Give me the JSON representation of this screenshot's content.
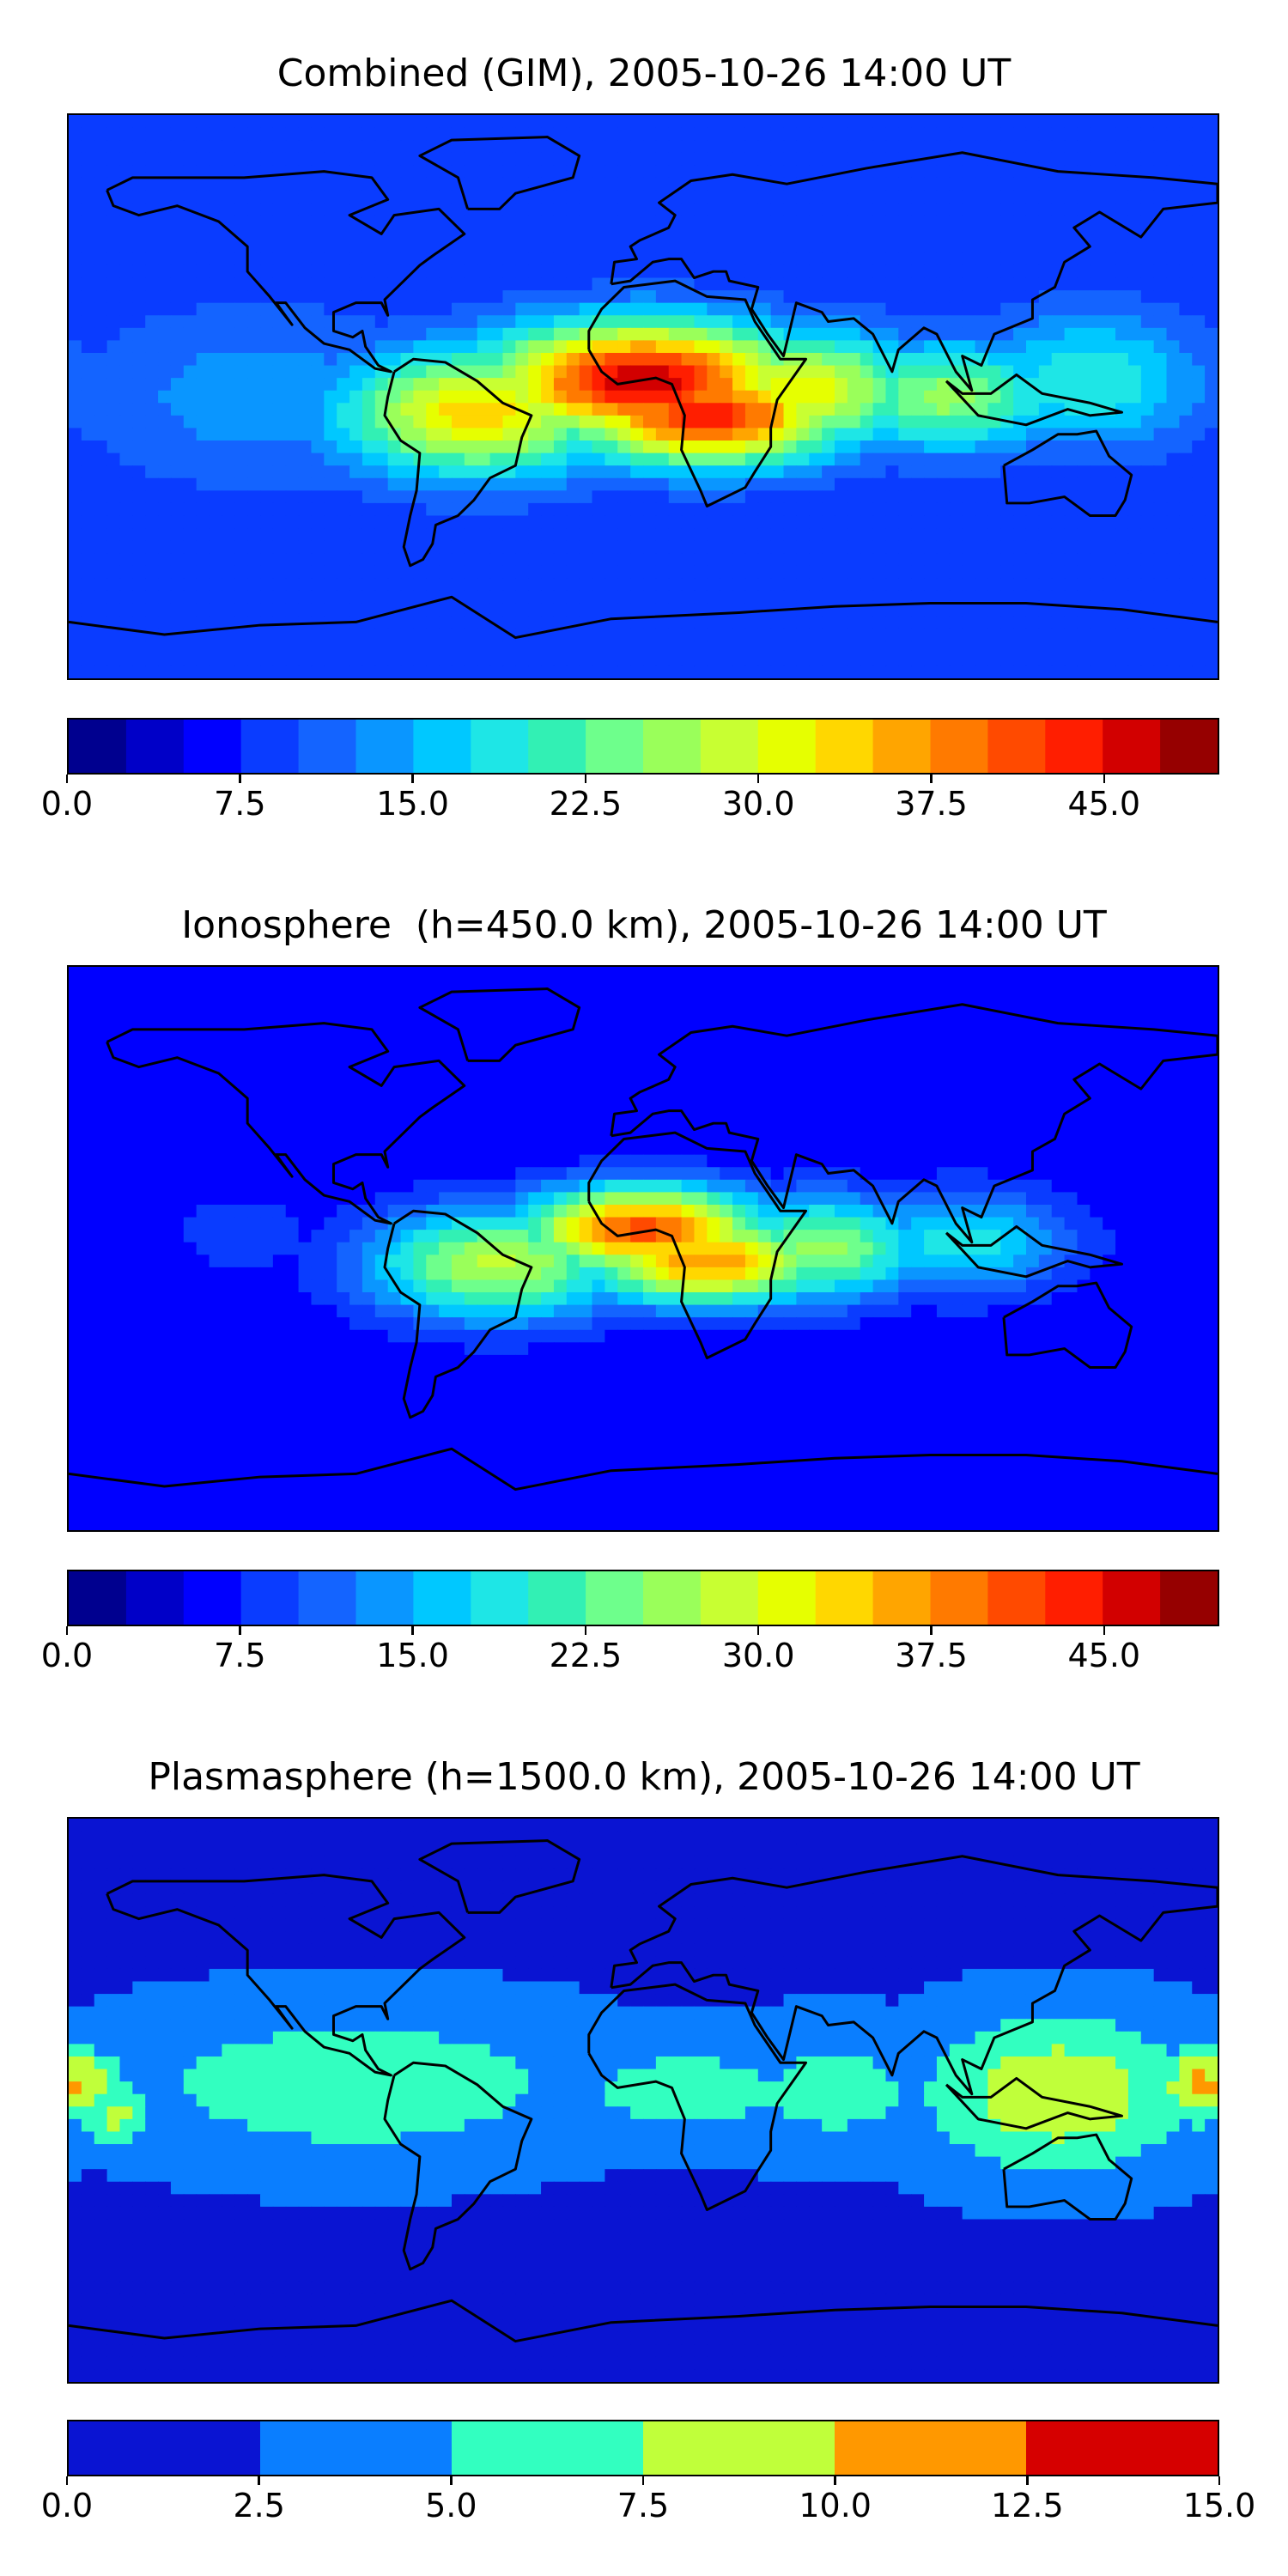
{
  "chart_data": [
    {
      "type": "heatmap",
      "title": "Combined (GIM), 2005-10-26 14:00 UT",
      "colorbar": {
        "levels": [
          0.0,
          2.5,
          5.0,
          7.5,
          10.0,
          12.5,
          15.0,
          17.5,
          20.0,
          22.5,
          25.0,
          27.5,
          30.0,
          32.5,
          35.0,
          37.5,
          40.0,
          42.5,
          45.0,
          47.5,
          50.0
        ],
        "colors": [
          "#00008f",
          "#0000c8",
          "#0000ff",
          "#0a3cff",
          "#1464ff",
          "#0a96ff",
          "#00c8ff",
          "#1ee6e6",
          "#32f0b4",
          "#6eff8c",
          "#9aff5a",
          "#c8ff32",
          "#e6ff00",
          "#ffd700",
          "#ffa500",
          "#ff7a00",
          "#ff4a00",
          "#ff1e00",
          "#d20000",
          "#960000"
        ],
        "tick_labels": [
          "0.0",
          "7.5",
          "15.0",
          "22.5",
          "30.0",
          "37.5",
          "45.0"
        ],
        "tick_values": [
          0.0,
          7.5,
          15.0,
          22.5,
          30.0,
          37.5,
          45.0
        ],
        "range": [
          0.0,
          50.0
        ]
      },
      "features": [
        {
          "lon": 0,
          "lat": 5,
          "value": 47,
          "spread_lon": 35,
          "spread_lat": 13
        },
        {
          "lon": 20,
          "lat": -6,
          "value": 44,
          "spread_lon": 30,
          "spread_lat": 11
        },
        {
          "lon": -52,
          "lat": -5,
          "value": 34,
          "spread_lon": 30,
          "spread_lat": 14
        },
        {
          "lon": 50,
          "lat": 2,
          "value": 32,
          "spread_lon": 25,
          "spread_lat": 13
        },
        {
          "lon": 95,
          "lat": 0,
          "value": 26,
          "spread_lon": 25,
          "spread_lat": 12
        },
        {
          "lon": 140,
          "lat": 5,
          "value": 20,
          "spread_lon": 25,
          "spread_lat": 15
        },
        {
          "lon": -120,
          "lat": 0,
          "value": 14,
          "spread_lon": 40,
          "spread_lat": 20
        }
      ],
      "background_value": 8
    },
    {
      "type": "heatmap",
      "title": "Ionosphere  (h=450.0 km), 2005-10-26 14:00 UT",
      "colorbar": {
        "levels": [
          0.0,
          2.5,
          5.0,
          7.5,
          10.0,
          12.5,
          15.0,
          17.5,
          20.0,
          22.5,
          25.0,
          27.5,
          30.0,
          32.5,
          35.0,
          37.5,
          40.0,
          42.5,
          45.0,
          47.5,
          50.0
        ],
        "colors": [
          "#00008f",
          "#0000c8",
          "#0000ff",
          "#0a3cff",
          "#1464ff",
          "#0a96ff",
          "#00c8ff",
          "#1ee6e6",
          "#32f0b4",
          "#6eff8c",
          "#9aff5a",
          "#c8ff32",
          "#e6ff00",
          "#ffd700",
          "#ffa500",
          "#ff7a00",
          "#ff4a00",
          "#ff1e00",
          "#d20000",
          "#960000"
        ],
        "tick_labels": [
          "0.0",
          "7.5",
          "15.0",
          "22.5",
          "30.0",
          "37.5",
          "45.0"
        ],
        "tick_values": [
          0.0,
          7.5,
          15.0,
          22.5,
          30.0,
          37.5,
          45.0
        ],
        "range": [
          0.0,
          50.0
        ]
      },
      "features": [
        {
          "lon": 0,
          "lat": 6,
          "value": 41,
          "spread_lon": 28,
          "spread_lat": 10
        },
        {
          "lon": 20,
          "lat": -4,
          "value": 37,
          "spread_lon": 28,
          "spread_lat": 10
        },
        {
          "lon": -45,
          "lat": -5,
          "value": 28,
          "spread_lon": 30,
          "spread_lat": 13
        },
        {
          "lon": 55,
          "lat": 0,
          "value": 26,
          "spread_lon": 25,
          "spread_lat": 12
        },
        {
          "lon": 100,
          "lat": 2,
          "value": 19,
          "spread_lon": 25,
          "spread_lat": 12
        },
        {
          "lon": -125,
          "lat": 5,
          "value": 8,
          "spread_lon": 30,
          "spread_lat": 18
        }
      ],
      "background_value": 5
    },
    {
      "type": "heatmap",
      "title": "Plasmasphere (h=1500.0 km), 2005-10-26 14:00 UT",
      "colorbar": {
        "levels": [
          0.0,
          2.5,
          5.0,
          7.5,
          10.0,
          12.5,
          15.0
        ],
        "colors": [
          "#0a14d2",
          "#0a7eff",
          "#32ffc0",
          "#c0ff3a",
          "#ff9800",
          "#d60000"
        ],
        "tick_labels": [
          "0.0",
          "2.5",
          "5.0",
          "7.5",
          "10.0",
          "12.5",
          "15.0"
        ],
        "tick_values": [
          0.0,
          2.5,
          5.0,
          7.5,
          10.0,
          12.5,
          15.0
        ],
        "range": [
          0.0,
          15.0
        ]
      },
      "features": [
        {
          "lon": 130,
          "lat": 2,
          "value": 9.5,
          "spread_lon": 30,
          "spread_lat": 18
        },
        {
          "lon": 175,
          "lat": 5,
          "value": 10.6,
          "spread_lon": 10,
          "spread_lat": 9
        },
        {
          "lon": -178,
          "lat": 5,
          "value": 10.4,
          "spread_lon": 10,
          "spread_lat": 9
        },
        {
          "lon": -165,
          "lat": -5,
          "value": 8.2,
          "spread_lon": 8,
          "spread_lat": 8
        },
        {
          "lon": -90,
          "lat": 5,
          "value": 6.8,
          "spread_lon": 55,
          "spread_lat": 18
        },
        {
          "lon": 15,
          "lat": 3,
          "value": 6.0,
          "spread_lon": 35,
          "spread_lat": 13
        },
        {
          "lon": 60,
          "lat": 3,
          "value": 6.0,
          "spread_lon": 25,
          "spread_lat": 15
        }
      ],
      "background_value": 2.0
    }
  ]
}
